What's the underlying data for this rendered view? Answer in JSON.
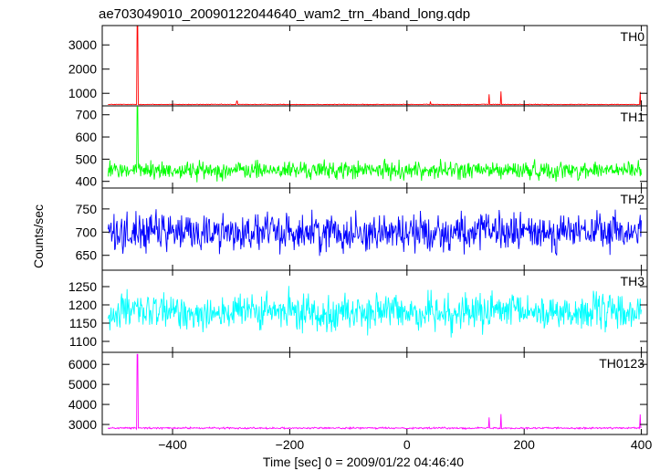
{
  "title": "ae703049010_20090122044640_wam2_trn_4band_long.qdp",
  "ylabel": "Counts/sec",
  "xlabel": "Time [sec] 0 = 2009/01/22 04:46:40",
  "chart_data": [
    {
      "type": "line",
      "name": "TH0",
      "color": "#ff0000",
      "xlim": [
        -520,
        410
      ],
      "ylim": [
        480,
        3800
      ],
      "yticks": [
        1000,
        2000,
        3000
      ],
      "baseline": 540,
      "noise": 15,
      "spikes": [
        {
          "x": -460,
          "y": 3800
        },
        {
          "x": -290,
          "y": 680
        },
        {
          "x": 40,
          "y": 660
        },
        {
          "x": 140,
          "y": 960
        },
        {
          "x": 160,
          "y": 1080
        },
        {
          "x": 398,
          "y": 1060
        }
      ]
    },
    {
      "type": "line",
      "name": "TH1",
      "color": "#00ff00",
      "xlim": [
        -520,
        410
      ],
      "ylim": [
        370,
        740
      ],
      "yticks": [
        400,
        500,
        600,
        700
      ],
      "baseline": 450,
      "noise": 45,
      "spikes": [
        {
          "x": -460,
          "y": 735
        }
      ]
    },
    {
      "type": "line",
      "name": "TH2",
      "color": "#0000ff",
      "xlim": [
        -520,
        410
      ],
      "ylim": [
        618,
        795
      ],
      "yticks": [
        650,
        700,
        750
      ],
      "baseline": 700,
      "noise": 45,
      "spikes": []
    },
    {
      "type": "line",
      "name": "TH3",
      "color": "#00ffff",
      "xlim": [
        -520,
        410
      ],
      "ylim": [
        1070,
        1295
      ],
      "yticks": [
        1100,
        1150,
        1200,
        1250
      ],
      "baseline": 1180,
      "noise": 55,
      "spikes": []
    },
    {
      "type": "line",
      "name": "TH0123",
      "color": "#ff00ff",
      "xlim": [
        -520,
        410
      ],
      "ylim": [
        2500,
        6600
      ],
      "yticks": [
        3000,
        4000,
        5000,
        6000
      ],
      "baseline": 2820,
      "noise": 45,
      "spikes": [
        {
          "x": -460,
          "y": 6500
        },
        {
          "x": 140,
          "y": 3350
        },
        {
          "x": 160,
          "y": 3520
        },
        {
          "x": 398,
          "y": 3500
        }
      ]
    }
  ],
  "xticks": [
    -400,
    -200,
    0,
    200,
    400
  ]
}
